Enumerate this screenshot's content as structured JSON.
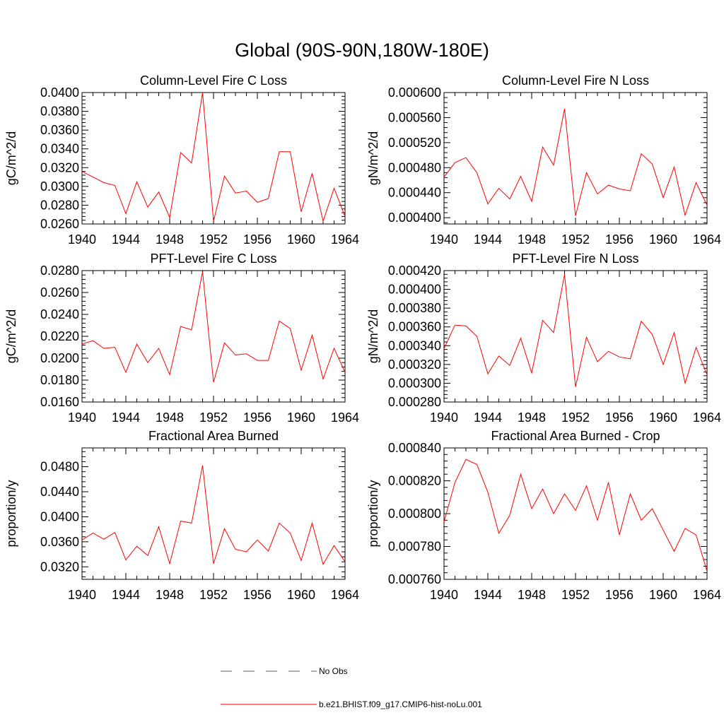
{
  "title": "Global (90S-90N,180W-180E)",
  "legend": {
    "entries": [
      {
        "name": "No Obs",
        "color": "#5a5aa0",
        "dash": true
      },
      {
        "name": "b.e21.BHIST.f09_g17.CMIP6-hist-noLu.001",
        "color": "#ff0000",
        "dash": false
      }
    ]
  },
  "chart_data": [
    {
      "type": "line",
      "title": "Column-Level Fire C Loss",
      "ylabel": "gC/m^2/d",
      "xlim": [
        1940,
        1964
      ],
      "ylim": [
        0.026,
        0.04
      ],
      "xticks": [
        1940,
        1944,
        1948,
        1952,
        1956,
        1960,
        1964
      ],
      "yticks": [
        0.026,
        0.028,
        0.03,
        0.032,
        0.034,
        0.036,
        0.038,
        0.04
      ],
      "ytick_labels": [
        "0.0260",
        "0.0280",
        "0.0300",
        "0.0320",
        "0.0340",
        "0.0360",
        "0.0380",
        "0.0400"
      ],
      "x": [
        1940,
        1941,
        1942,
        1943,
        1944,
        1945,
        1946,
        1947,
        1948,
        1949,
        1950,
        1951,
        1952,
        1953,
        1954,
        1955,
        1956,
        1957,
        1958,
        1959,
        1960,
        1961,
        1962,
        1963,
        1964
      ],
      "series": [
        {
          "name": "b.e21.BHIST.f09_g17.CMIP6-hist-noLu.001",
          "color": "#ff0000",
          "values": [
            0.0316,
            0.031,
            0.0304,
            0.0301,
            0.0271,
            0.0305,
            0.0278,
            0.0294,
            0.0267,
            0.0336,
            0.0325,
            0.04,
            0.0263,
            0.0311,
            0.0293,
            0.0295,
            0.0283,
            0.0287,
            0.0337,
            0.0337,
            0.0273,
            0.0314,
            0.0263,
            0.0298,
            0.0268
          ]
        }
      ]
    },
    {
      "type": "line",
      "title": "Column-Level Fire N Loss",
      "ylabel": "gN/m^2/d",
      "xlim": [
        1940,
        1964
      ],
      "ylim": [
        0.00039,
        0.0006
      ],
      "xticks": [
        1940,
        1944,
        1948,
        1952,
        1956,
        1960,
        1964
      ],
      "yticks": [
        0.0004,
        0.00044,
        0.00048,
        0.00052,
        0.00056,
        0.0006
      ],
      "ytick_labels": [
        "0.000400",
        "0.000440",
        "0.000480",
        "0.000520",
        "0.000560",
        "0.000600"
      ],
      "x": [
        1940,
        1941,
        1942,
        1943,
        1944,
        1945,
        1946,
        1947,
        1948,
        1949,
        1950,
        1951,
        1952,
        1953,
        1954,
        1955,
        1956,
        1957,
        1958,
        1959,
        1960,
        1961,
        1962,
        1963,
        1964
      ],
      "series": [
        {
          "name": "b.e21.BHIST.f09_g17.CMIP6-hist-noLu.001",
          "color": "#ff0000",
          "values": [
            0.000465,
            0.000488,
            0.000496,
            0.000472,
            0.000422,
            0.000447,
            0.00043,
            0.000466,
            0.000426,
            0.000513,
            0.000484,
            0.000574,
            0.000403,
            0.000472,
            0.000438,
            0.000452,
            0.000446,
            0.000443,
            0.000502,
            0.000486,
            0.000432,
            0.000481,
            0.000404,
            0.000456,
            0.00042
          ]
        }
      ]
    },
    {
      "type": "line",
      "title": "PFT-Level Fire C Loss",
      "ylabel": "gC/m^2/d",
      "xlim": [
        1940,
        1964
      ],
      "ylim": [
        0.016,
        0.028
      ],
      "xticks": [
        1940,
        1944,
        1948,
        1952,
        1956,
        1960,
        1964
      ],
      "yticks": [
        0.016,
        0.018,
        0.02,
        0.022,
        0.024,
        0.026,
        0.028
      ],
      "ytick_labels": [
        "0.0160",
        "0.0180",
        "0.0200",
        "0.0220",
        "0.0240",
        "0.0260",
        "0.0280"
      ],
      "x": [
        1940,
        1941,
        1942,
        1943,
        1944,
        1945,
        1946,
        1947,
        1948,
        1949,
        1950,
        1951,
        1952,
        1953,
        1954,
        1955,
        1956,
        1957,
        1958,
        1959,
        1960,
        1961,
        1962,
        1963,
        1964
      ],
      "series": [
        {
          "name": "b.e21.BHIST.f09_g17.CMIP6-hist-noLu.001",
          "color": "#ff0000",
          "values": [
            0.0213,
            0.0216,
            0.0209,
            0.021,
            0.0187,
            0.0213,
            0.0196,
            0.0209,
            0.0185,
            0.0229,
            0.0226,
            0.0279,
            0.0178,
            0.0214,
            0.0203,
            0.0204,
            0.0198,
            0.0198,
            0.0234,
            0.0227,
            0.0189,
            0.0221,
            0.0181,
            0.0209,
            0.0187
          ]
        }
      ]
    },
    {
      "type": "line",
      "title": "PFT-Level Fire N Loss",
      "ylabel": "gN/m^2/d",
      "xlim": [
        1940,
        1964
      ],
      "ylim": [
        0.00028,
        0.00042
      ],
      "xticks": [
        1940,
        1944,
        1948,
        1952,
        1956,
        1960,
        1964
      ],
      "yticks": [
        0.00028,
        0.0003,
        0.00032,
        0.00034,
        0.00036,
        0.00038,
        0.0004,
        0.00042
      ],
      "ytick_labels": [
        "0.000280",
        "0.000300",
        "0.000320",
        "0.000340",
        "0.000360",
        "0.000380",
        "0.000400",
        "0.000420"
      ],
      "x": [
        1940,
        1941,
        1942,
        1943,
        1944,
        1945,
        1946,
        1947,
        1948,
        1949,
        1950,
        1951,
        1952,
        1953,
        1954,
        1955,
        1956,
        1957,
        1958,
        1959,
        1960,
        1961,
        1962,
        1963,
        1964
      ],
      "series": [
        {
          "name": "b.e21.BHIST.f09_g17.CMIP6-hist-noLu.001",
          "color": "#ff0000",
          "values": [
            0.000337,
            0.000362,
            0.000361,
            0.00035,
            0.00031,
            0.000329,
            0.000319,
            0.000348,
            0.000311,
            0.000367,
            0.000354,
            0.000416,
            0.000296,
            0.000349,
            0.000323,
            0.000334,
            0.000328,
            0.000326,
            0.000366,
            0.000352,
            0.00032,
            0.000354,
            0.0003,
            0.000338,
            0.000309
          ]
        }
      ]
    },
    {
      "type": "line",
      "title": "Fractional Area Burned",
      "ylabel": "proportion/y",
      "xlim": [
        1940,
        1964
      ],
      "ylim": [
        0.03,
        0.051
      ],
      "xticks": [
        1940,
        1944,
        1948,
        1952,
        1956,
        1960,
        1964
      ],
      "yticks": [
        0.032,
        0.036,
        0.04,
        0.044,
        0.048
      ],
      "ytick_labels": [
        "0.0320",
        "0.0360",
        "0.0400",
        "0.0440",
        "0.0480"
      ],
      "x": [
        1940,
        1941,
        1942,
        1943,
        1944,
        1945,
        1946,
        1947,
        1948,
        1949,
        1950,
        1951,
        1952,
        1953,
        1954,
        1955,
        1956,
        1957,
        1958,
        1959,
        1960,
        1961,
        1962,
        1963,
        1964
      ],
      "series": [
        {
          "name": "b.e21.BHIST.f09_g17.CMIP6-hist-noLu.001",
          "color": "#ff0000",
          "values": [
            0.0363,
            0.0374,
            0.0364,
            0.0375,
            0.0331,
            0.0353,
            0.0338,
            0.0384,
            0.0325,
            0.0393,
            0.039,
            0.0482,
            0.0325,
            0.0381,
            0.0348,
            0.0344,
            0.0363,
            0.0345,
            0.039,
            0.0374,
            0.033,
            0.039,
            0.0324,
            0.0354,
            0.0328
          ]
        }
      ]
    },
    {
      "type": "line",
      "title": "Fractional Area Burned - Crop",
      "ylabel": "proportion/y",
      "xlim": [
        1940,
        1964
      ],
      "ylim": [
        0.00076,
        0.00084
      ],
      "xticks": [
        1940,
        1944,
        1948,
        1952,
        1956,
        1960,
        1964
      ],
      "yticks": [
        0.00076,
        0.00078,
        0.0008,
        0.00082,
        0.00084
      ],
      "ytick_labels": [
        "0.000760",
        "0.000780",
        "0.000800",
        "0.000820",
        "0.000840"
      ],
      "x": [
        1940,
        1941,
        1942,
        1943,
        1944,
        1945,
        1946,
        1947,
        1948,
        1949,
        1950,
        1951,
        1952,
        1953,
        1954,
        1955,
        1956,
        1957,
        1958,
        1959,
        1960,
        1961,
        1962,
        1963,
        1964
      ],
      "series": [
        {
          "name": "b.e21.BHIST.f09_g17.CMIP6-hist-noLu.001",
          "color": "#ff0000",
          "values": [
            0.000795,
            0.000819,
            0.000833,
            0.00083,
            0.000813,
            0.000788,
            0.000799,
            0.000824,
            0.000803,
            0.000815,
            0.0008,
            0.000812,
            0.000802,
            0.000817,
            0.000796,
            0.000819,
            0.000787,
            0.000812,
            0.000796,
            0.000803,
            0.00079,
            0.000777,
            0.000791,
            0.000787,
            0.000765
          ]
        }
      ]
    }
  ]
}
